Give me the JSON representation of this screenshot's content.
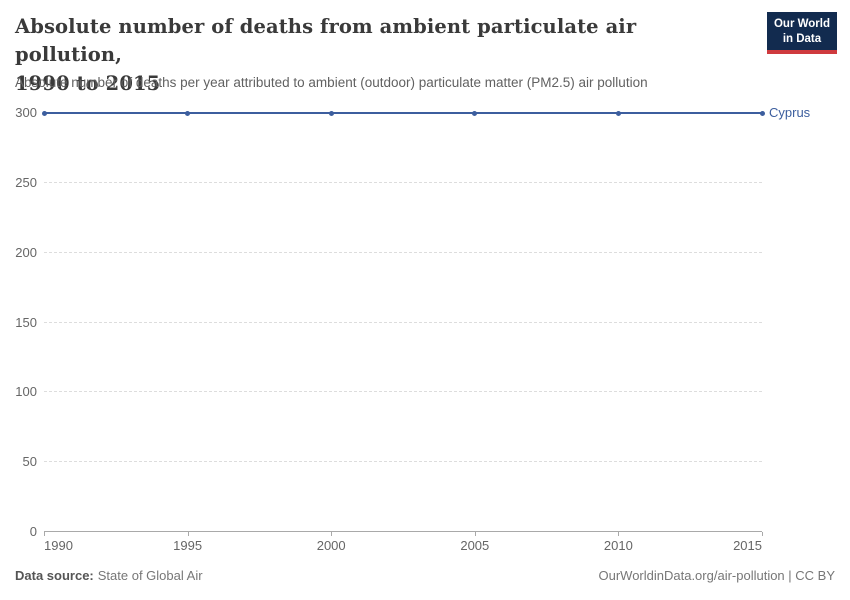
{
  "header": {
    "title_lines": [
      "Absolute number of deaths from ambient particulate air pollution,",
      "1990 to 2015"
    ],
    "subtitle": "Absolute number of deaths per year attributed to ambient (outdoor) particulate matter (PM2.5) air pollution",
    "logo": {
      "line1": "Our World",
      "line2": "in Data",
      "bg_color": "#122b4f",
      "stripe_color": "#cf3a3e",
      "text_color": "#ffffff"
    }
  },
  "chart_data": {
    "type": "line",
    "title": "Absolute number of deaths from ambient particulate air pollution, 1990 to 2015",
    "subtitle": "Absolute number of deaths per year attributed to ambient (outdoor) particulate matter (PM2.5) air pollution",
    "x": [
      1990,
      1995,
      2000,
      2005,
      2010,
      2015
    ],
    "series": [
      {
        "name": "Cyprus",
        "values": [
          300,
          300,
          300,
          300,
          300,
          300
        ],
        "color": "#3c5e9e"
      }
    ],
    "xlim": [
      1990,
      2015
    ],
    "ylim": [
      0,
      300
    ],
    "yticks": [
      0,
      50,
      100,
      150,
      200,
      250,
      300
    ],
    "xticks": [
      1990,
      1995,
      2000,
      2005,
      2010,
      2015
    ],
    "xlabel": "",
    "ylabel": "",
    "grid": "horizontal-dashed",
    "gridline_color": "#dddddd",
    "axis_color": "#a9a9a9",
    "tick_label_color": "#666666",
    "legend_position": "end-of-line"
  },
  "footer": {
    "source_label": "Data source:",
    "source_value": "State of Global Air",
    "credit": "OurWorldinData.org/air-pollution | CC BY"
  }
}
